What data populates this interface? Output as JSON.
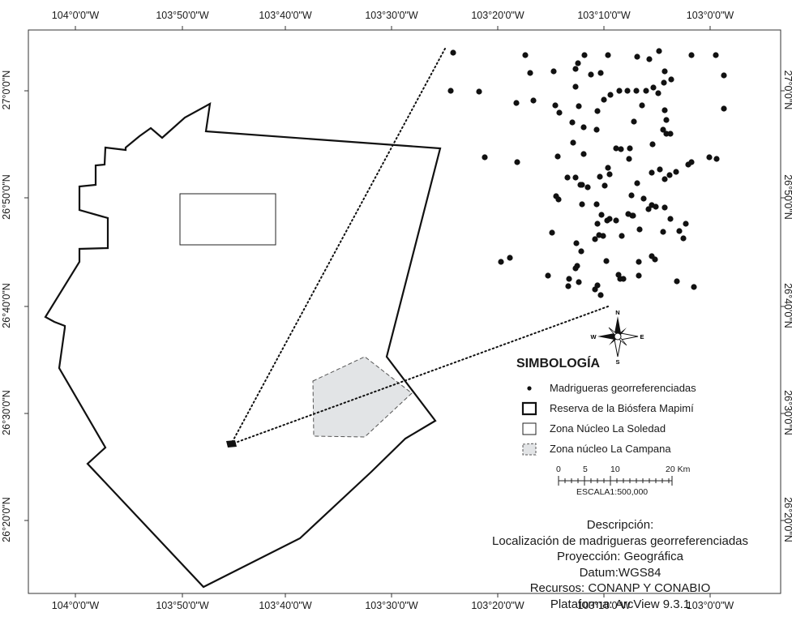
{
  "axis_labels": {
    "longitudes": [
      "104°0'0\"W",
      "103°50'0\"W",
      "103°40'0\"W",
      "103°30'0\"W",
      "103°20'0\"W",
      "103°10'0\"W",
      "103°0'0\"W"
    ],
    "latitudes": [
      "27°0'0\"N",
      "26°50'0\"N",
      "26°40'0\"N",
      "26°30'0\"N",
      "26°20'0\"N"
    ]
  },
  "compass": {
    "n": "N",
    "s": "S",
    "e": "E",
    "w": "W"
  },
  "legend": {
    "title": "SIMBOLOGÍA",
    "items": [
      {
        "label": "Madrigueras georreferenciadas",
        "symbol": "point"
      },
      {
        "label": "Reserva de la Biósfera Mapimí",
        "symbol": "reserve"
      },
      {
        "label": "Zona Núcleo La Soledad",
        "symbol": "soledad"
      },
      {
        "label": "Zona núcleo La Campana",
        "symbol": "campana"
      }
    ]
  },
  "scale_bar": {
    "ticks": [
      "0",
      "5",
      "10",
      "20 Km"
    ],
    "label": "ESCALA1:500,000"
  },
  "description": {
    "heading": "Descripción:",
    "lines": [
      "Localización de madrigueras georreferenciadas",
      "Proyección: Geográfica",
      "Datum:WGS84",
      "Recursos: CONANP Y CONABIO",
      "Plataforma: ArcView 9.3.1"
    ]
  },
  "colors": {
    "campana_fill": "#e2e4e6",
    "outline": "#111111",
    "frame": "#333333"
  }
}
